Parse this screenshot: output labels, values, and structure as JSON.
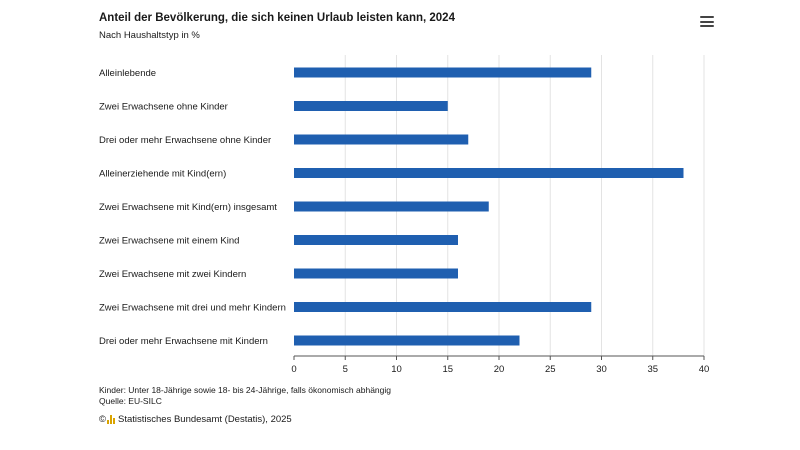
{
  "header": {
    "title": "Anteil der Bevölkerung, die sich keinen Urlaub leisten kann, 2024",
    "subtitle": "Nach Haushaltstyp in %",
    "menu_icon": "hamburger-menu-icon"
  },
  "chart_data": {
    "type": "bar",
    "orientation": "horizontal",
    "title": "Anteil der Bevölkerung, die sich keinen Urlaub leisten kann, 2024",
    "subtitle": "Nach Haushaltstyp in %",
    "categories": [
      "Alleinlebende",
      "Zwei Erwachsene ohne Kinder",
      "Drei oder mehr Erwachsene ohne Kinder",
      "Alleinerziehende mit Kind(ern)",
      "Zwei Erwachsene mit Kind(ern) insgesamt",
      "Zwei Erwachsene mit einem Kind",
      "Zwei Erwachsene mit zwei Kindern",
      "Zwei Erwachsene mit drei und mehr Kindern",
      "Drei oder mehr Erwachsene mit Kindern"
    ],
    "values": [
      29,
      15,
      17,
      38,
      19,
      16,
      16,
      29,
      22
    ],
    "xlim": [
      0,
      40
    ],
    "xticks": [
      0,
      5,
      10,
      15,
      20,
      25,
      30,
      35,
      40
    ],
    "xlabel": "",
    "ylabel": "",
    "grid": true,
    "bar_color": "#1f5fb0"
  },
  "footer": {
    "footnote": "Kinder: Unter 18-Jährige sowie 18- bis 24-Jährige, falls ökonomisch abhängig",
    "source": "Quelle: EU-SILC",
    "copyright_symbol": "©",
    "copyright_text": "Statistisches Bundesamt (Destatis), 2025"
  }
}
